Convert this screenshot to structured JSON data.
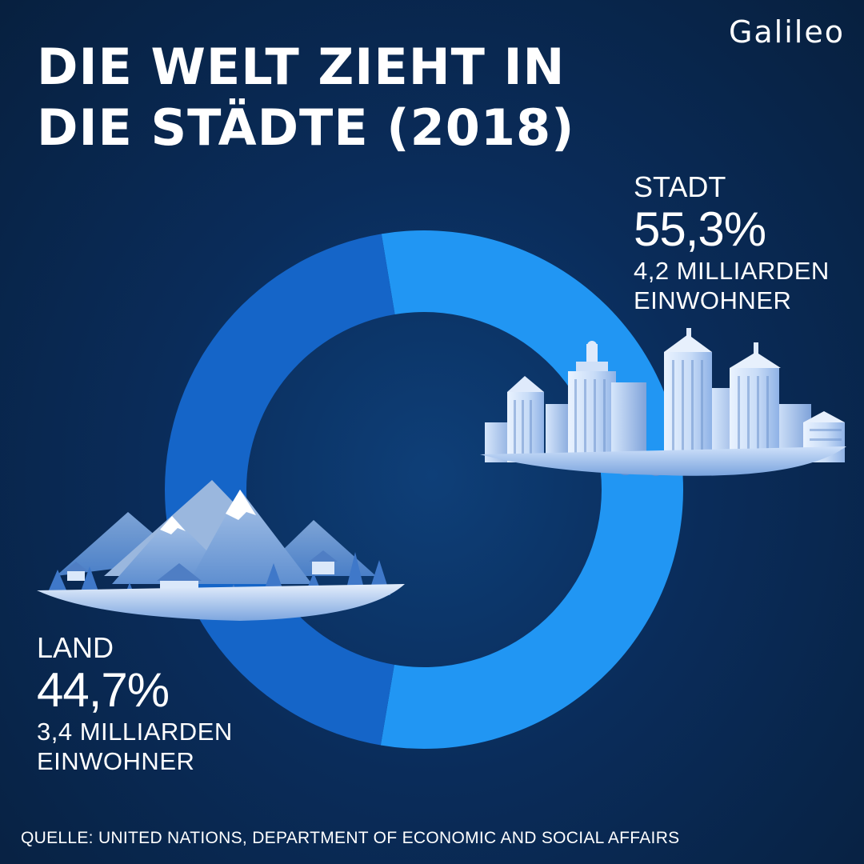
{
  "header": {
    "title_line1": "DIE WELT ZIEHT IN",
    "title_line2": "DIE STÄDTE (2018)",
    "logo": "Galileo"
  },
  "chart_data": {
    "type": "pie",
    "title": "DIE WELT ZIEHT IN DIE STÄDTE (2018)",
    "categories": [
      "STADT",
      "LAND"
    ],
    "values": [
      55.3,
      44.7
    ],
    "unit": "%",
    "labels": [
      {
        "name": "STADT",
        "percent": "55,3%",
        "detail_line1": "4,2 MILLIARDEN",
        "detail_line2": "EINWOHNER"
      },
      {
        "name": "LAND",
        "percent": "44,7%",
        "detail_line1": "3,4 MILLIARDEN",
        "detail_line2": "EINWOHNER"
      }
    ],
    "colors": [
      "#2196f3",
      "#1565c8"
    ],
    "donut": true
  },
  "footer": {
    "source": "QUELLE: UNITED NATIONS, DEPARTMENT OF ECONOMIC AND SOCIAL AFFAIRS"
  },
  "illustrations": [
    {
      "name": "city-skyline-icon"
    },
    {
      "name": "mountain-village-icon"
    }
  ]
}
